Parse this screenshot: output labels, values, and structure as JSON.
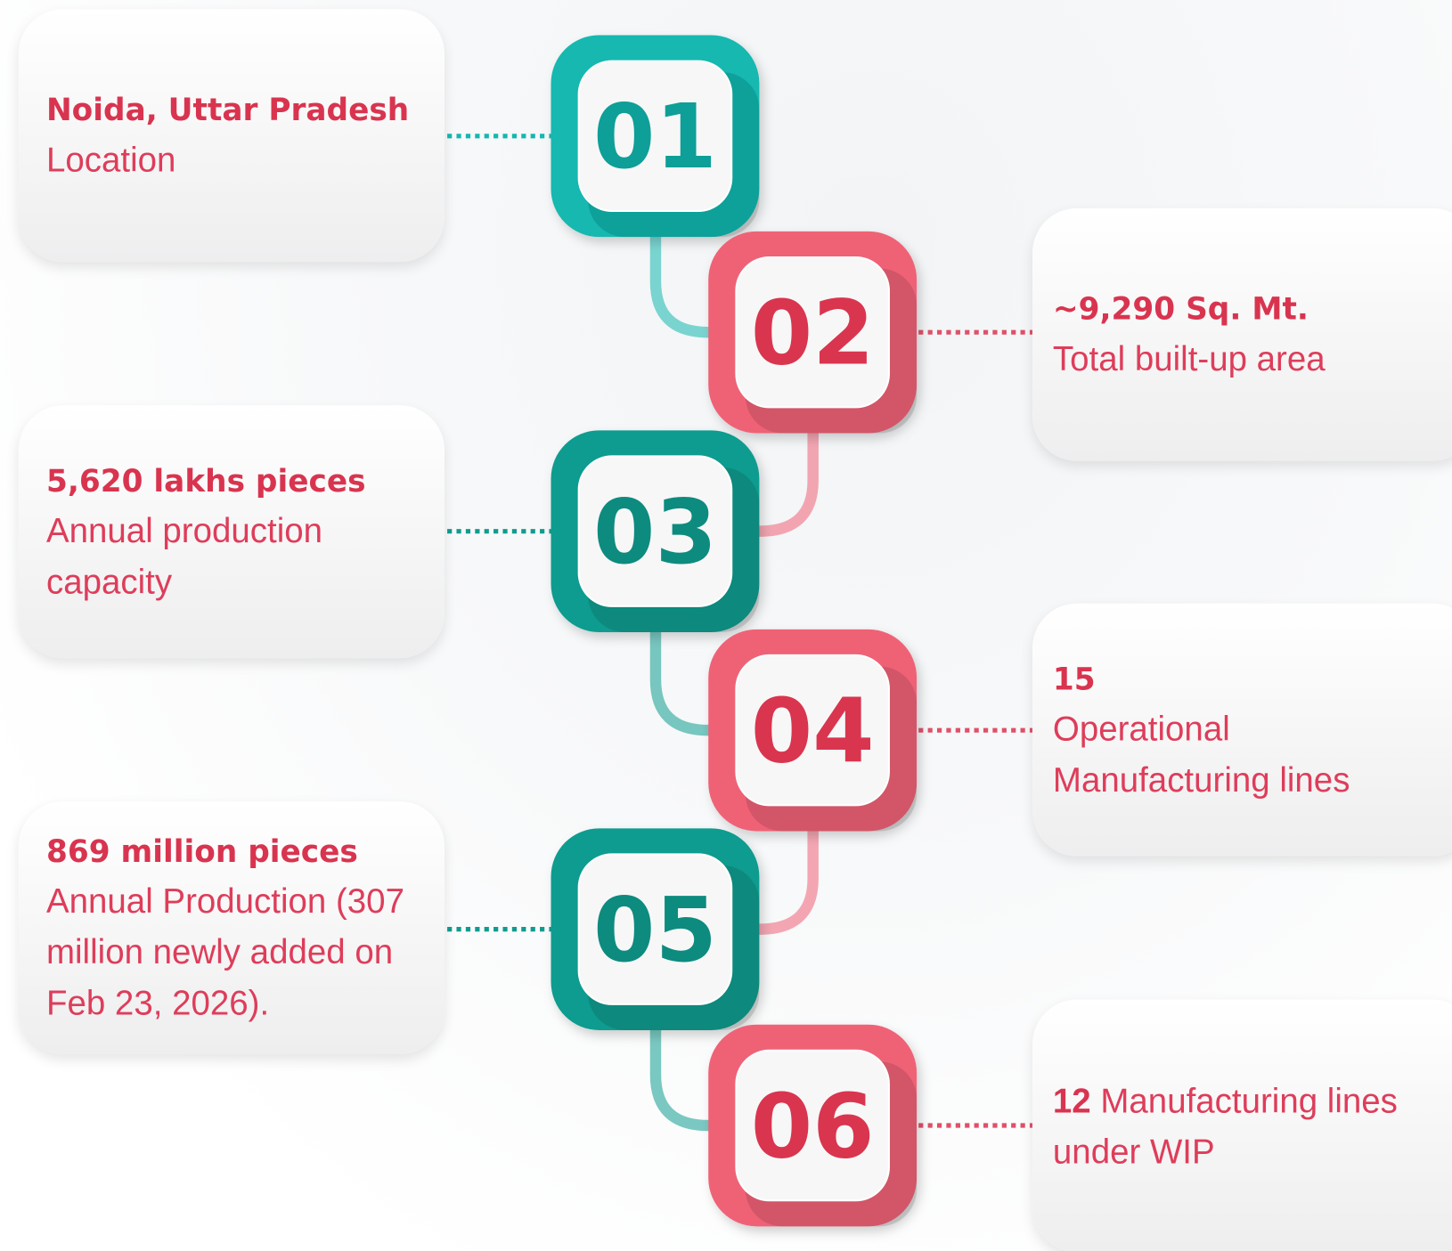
{
  "items": [
    {
      "number": "01",
      "headline": "Noida, Uttar Pradesh",
      "description": "Location"
    },
    {
      "number": "02",
      "headline": "~9,290 Sq. Mt.",
      "description": "Total built-up area"
    },
    {
      "number": "03",
      "headline": "5,620 lakhs pieces",
      "description": "Annual production capacity"
    },
    {
      "number": "04",
      "headline": "15",
      "description": "Operational Manufacturing lines"
    },
    {
      "number": "05",
      "headline": "869 million pieces",
      "description": "Annual Production (307 million newly added on Feb 23, 2026)."
    },
    {
      "number": "06",
      "headline": "12",
      "description": "Manufacturing lines under WIP"
    }
  ]
}
